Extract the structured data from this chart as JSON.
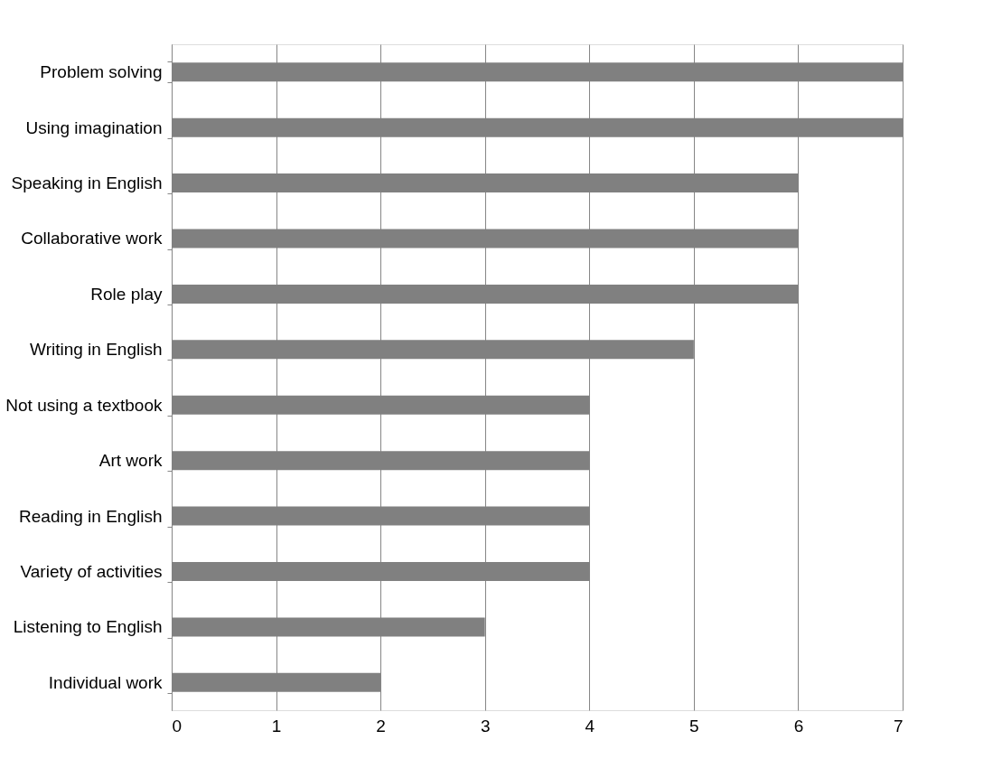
{
  "chart_data": {
    "type": "bar",
    "orientation": "horizontal",
    "categories": [
      null,
      "Problem solving",
      "Using imagination",
      "Speaking in English",
      "Collaborative work",
      "Role play",
      "Writing in English",
      "Not using a textbook",
      "Art work",
      "Reading in English",
      "Variety of activities",
      "Listening to English",
      "Individual work"
    ],
    "values": [
      null,
      7,
      7,
      6,
      6,
      6,
      5,
      4,
      4,
      4,
      4,
      3,
      2
    ],
    "color": "#808080",
    "xlim": [
      0,
      7
    ],
    "xticks": [
      0,
      1,
      2,
      3,
      4,
      5,
      6,
      7
    ],
    "grid": "x"
  }
}
